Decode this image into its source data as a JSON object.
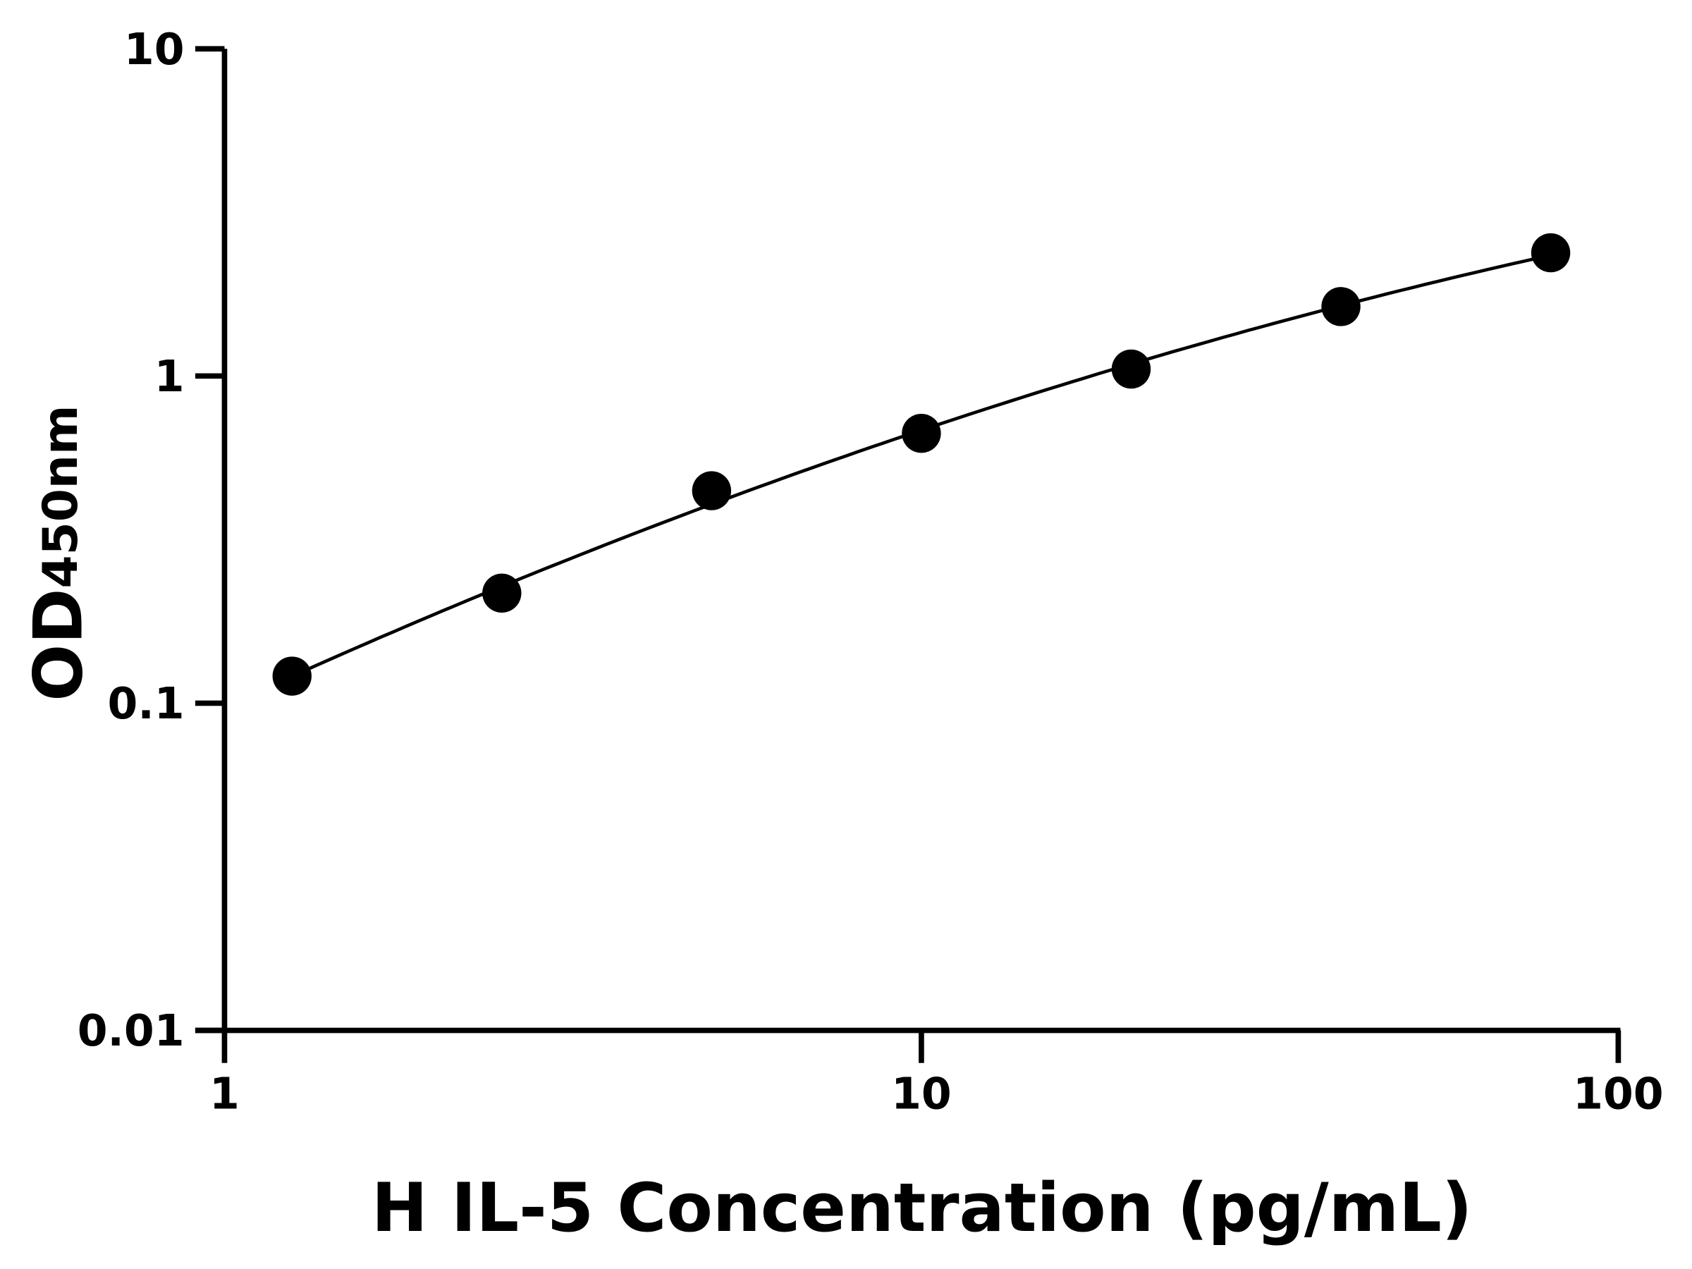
{
  "chart_data": {
    "type": "scatter",
    "xlabel": "H IL-5 Concentration (pg/mL)",
    "ylabel_main": "OD",
    "ylabel_sub": "450nm",
    "x_scale": "log",
    "y_scale": "log",
    "xlim": [
      1,
      100
    ],
    "ylim": [
      0.01,
      10
    ],
    "x_ticks": [
      "1",
      "10",
      "100"
    ],
    "y_ticks": [
      "0.01",
      "0.1",
      "1",
      "10"
    ],
    "grid": false,
    "fit_curve": true,
    "color": "#000000",
    "points": [
      {
        "x": 1.25,
        "y": 0.121
      },
      {
        "x": 2.5,
        "y": 0.217
      },
      {
        "x": 5,
        "y": 0.446
      },
      {
        "x": 10,
        "y": 0.668
      },
      {
        "x": 20,
        "y": 1.05
      },
      {
        "x": 40,
        "y": 1.63
      },
      {
        "x": 80,
        "y": 2.38
      }
    ]
  }
}
